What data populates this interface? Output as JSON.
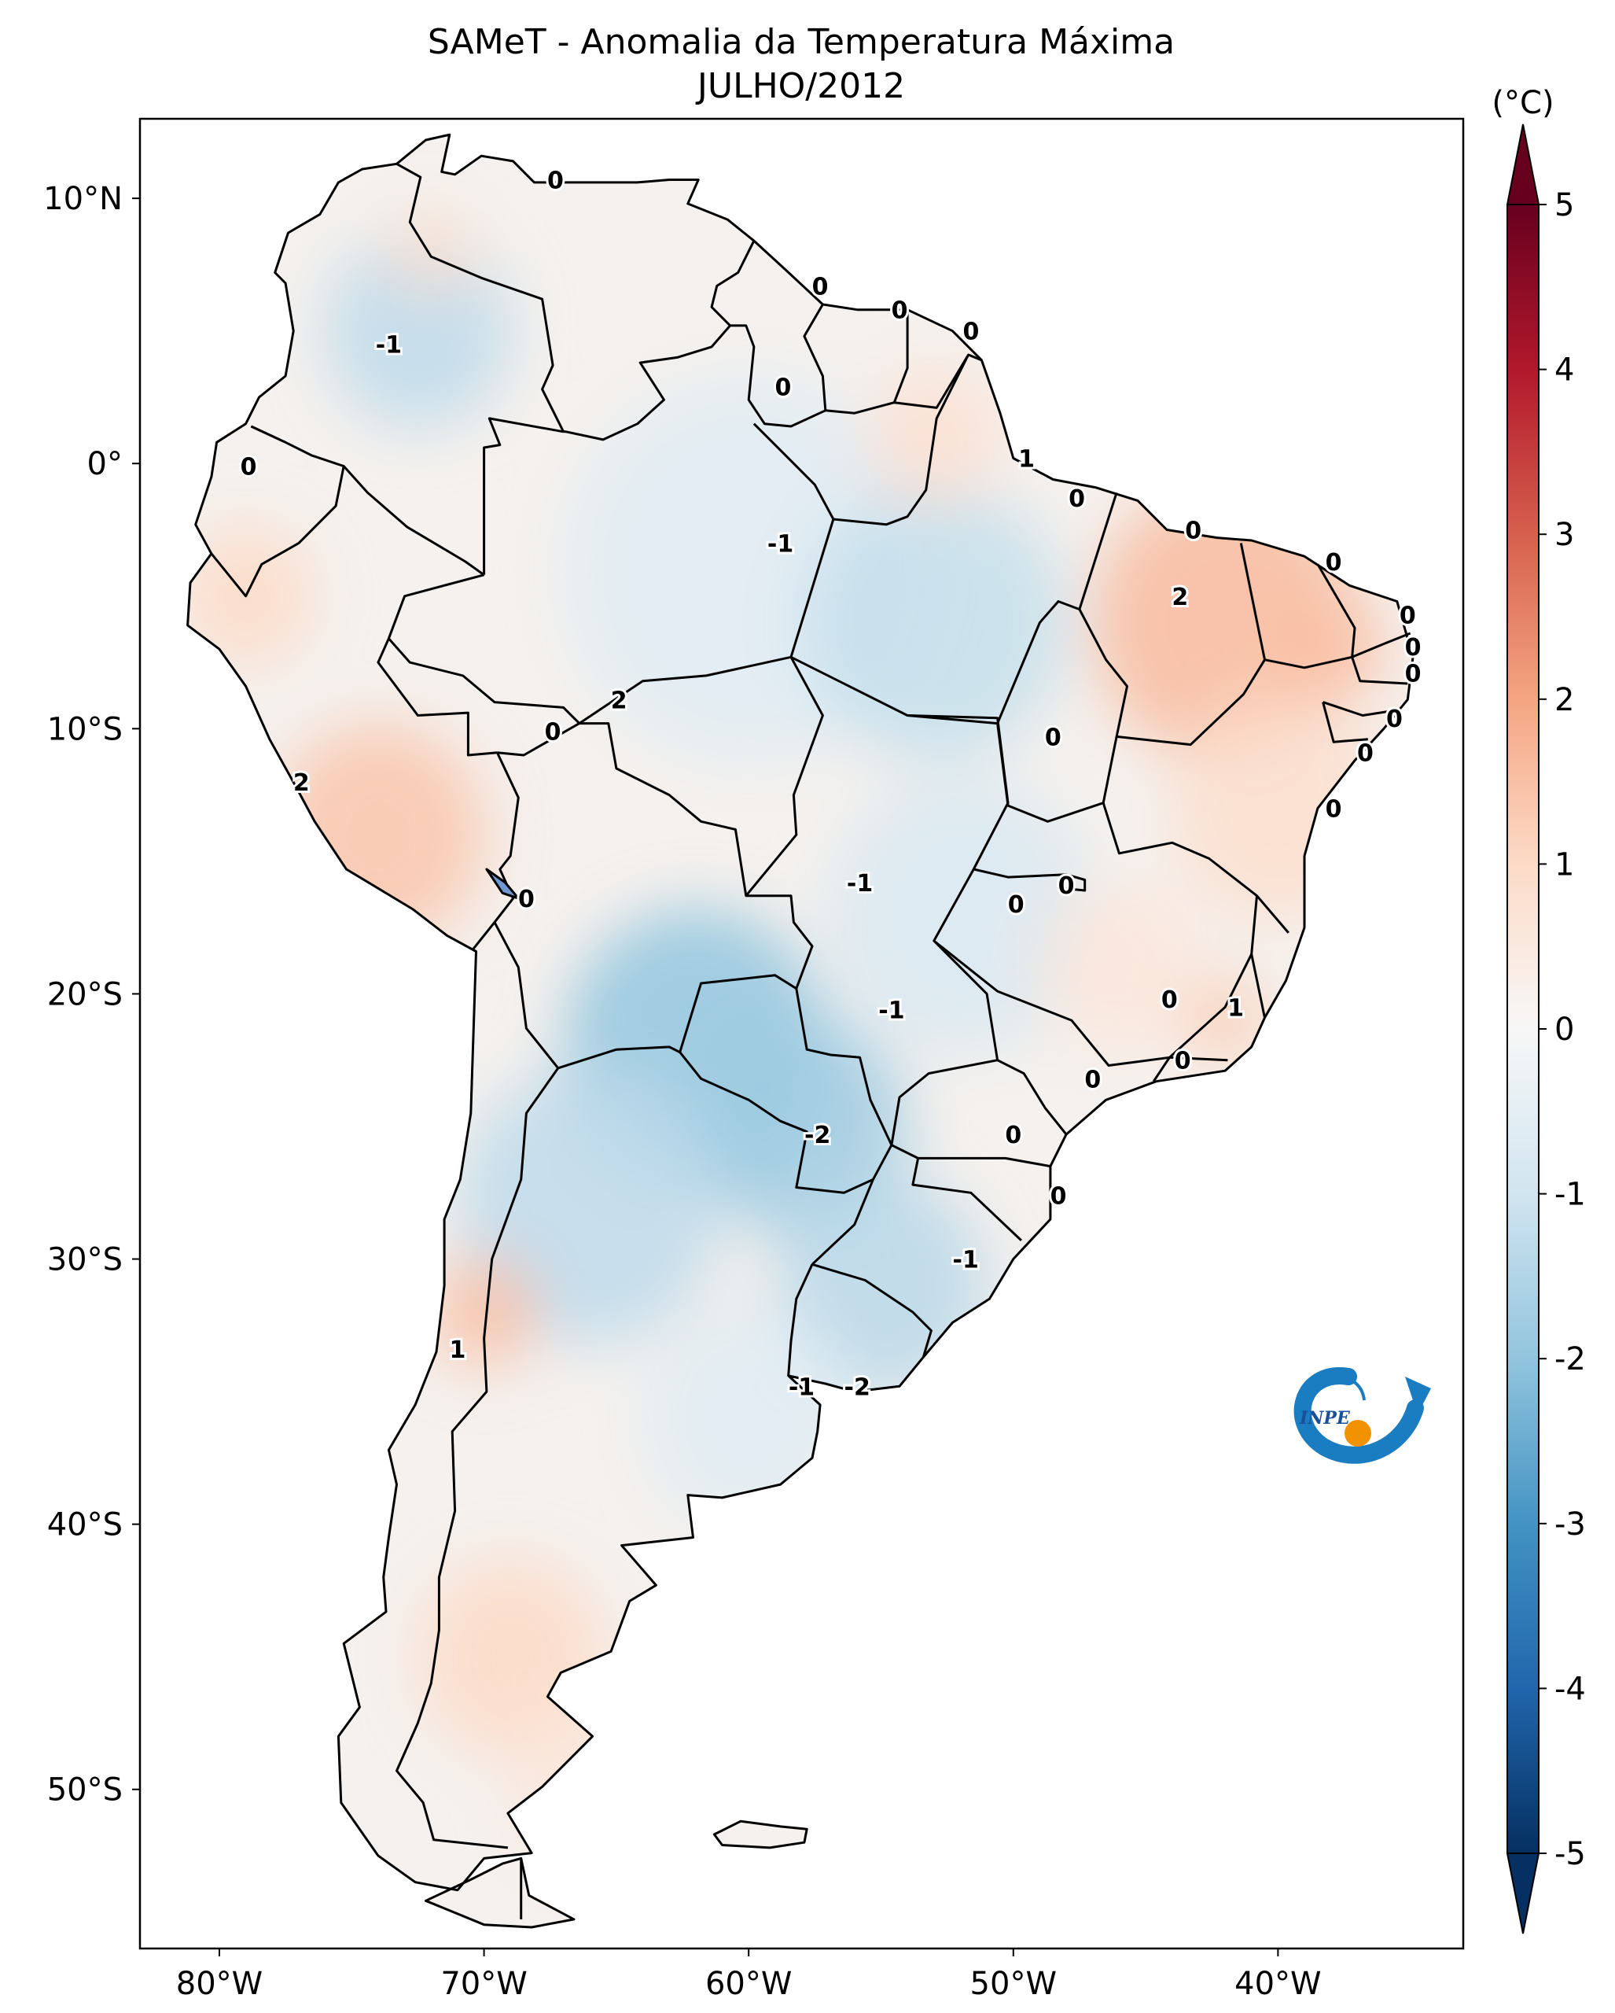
{
  "title": {
    "line1": "SAMeT - Anomalia da Temperatura Máxima",
    "line2": "JULHO/2012"
  },
  "map": {
    "extent": {
      "lon": [
        -83,
        -33
      ],
      "lat": [
        -56,
        13
      ]
    },
    "lon_ticks": [
      {
        "value": -80,
        "label": "80°W"
      },
      {
        "value": -70,
        "label": "70°W"
      },
      {
        "value": -60,
        "label": "60°W"
      },
      {
        "value": -50,
        "label": "50°W"
      },
      {
        "value": -40,
        "label": "40°W"
      }
    ],
    "lat_ticks": [
      {
        "value": 10,
        "label": "10°N"
      },
      {
        "value": 0,
        "label": "0°"
      },
      {
        "value": -10,
        "label": "10°S"
      },
      {
        "value": -20,
        "label": "20°S"
      },
      {
        "value": -30,
        "label": "30°S"
      },
      {
        "value": -40,
        "label": "40°S"
      },
      {
        "value": -50,
        "label": "50°S"
      }
    ],
    "anomaly_regions": [
      {
        "lon": -72.5,
        "lat": 5,
        "r": 3.5,
        "value": -1.3
      },
      {
        "lon": -60,
        "lat": -4,
        "r": 7,
        "value": -0.6
      },
      {
        "lon": -53,
        "lat": -6,
        "r": 5,
        "value": -1.2
      },
      {
        "lon": -62,
        "lat": -22,
        "r": 5,
        "value": -2.0
      },
      {
        "lon": -58,
        "lat": -25,
        "r": 4,
        "value": -1.8
      },
      {
        "lon": -66,
        "lat": -28,
        "r": 5,
        "value": -1.3
      },
      {
        "lon": -55,
        "lat": -31,
        "r": 4,
        "value": -1.4
      },
      {
        "lon": -52,
        "lat": -17,
        "r": 5,
        "value": -0.8
      },
      {
        "lon": -60,
        "lat": -36,
        "r": 4,
        "value": -0.6
      },
      {
        "lon": -42,
        "lat": -6,
        "r": 5,
        "value": 1.6
      },
      {
        "lon": -40,
        "lat": -13,
        "r": 4,
        "value": 0.9
      },
      {
        "lon": -74,
        "lat": -14,
        "r": 4,
        "value": 1.4
      },
      {
        "lon": -79,
        "lat": -5,
        "r": 2.5,
        "value": 1.0
      },
      {
        "lon": -70,
        "lat": -32,
        "r": 2,
        "value": 1.5
      },
      {
        "lon": -69,
        "lat": -45,
        "r": 3.5,
        "value": 1.0
      },
      {
        "lon": -53,
        "lat": 1,
        "r": 2.5,
        "value": 0.8
      },
      {
        "lon": -46,
        "lat": -19,
        "r": 3,
        "value": 0.6
      },
      {
        "lon": -42,
        "lat": -21,
        "r": 1.5,
        "value": 1.3
      },
      {
        "lon": -72,
        "lat": 8,
        "r": 1.5,
        "value": 0.9
      },
      {
        "lon": -66,
        "lat": -50,
        "r": 3,
        "value": 0.6
      },
      {
        "lon": -38,
        "lat": -7,
        "r": 2,
        "value": 1.5
      }
    ],
    "contour_labels": [
      {
        "text": "0",
        "lon": -67.3,
        "lat": 10.7
      },
      {
        "text": "0",
        "lon": -57.3,
        "lat": 6.7
      },
      {
        "text": "0",
        "lon": -54.3,
        "lat": 5.8
      },
      {
        "text": "0",
        "lon": -51.6,
        "lat": 5.0
      },
      {
        "text": "-1",
        "lon": -73.6,
        "lat": 4.5
      },
      {
        "text": "0",
        "lon": -58.7,
        "lat": 2.9
      },
      {
        "text": "0",
        "lon": -78.9,
        "lat": -0.1
      },
      {
        "text": "1",
        "lon": -49.5,
        "lat": 0.2
      },
      {
        "text": "0",
        "lon": -47.6,
        "lat": -1.3
      },
      {
        "text": "0",
        "lon": -43.2,
        "lat": -2.5
      },
      {
        "text": "-1",
        "lon": -58.8,
        "lat": -3.0
      },
      {
        "text": "0",
        "lon": -37.9,
        "lat": -3.7
      },
      {
        "text": "2",
        "lon": -43.7,
        "lat": -5.0
      },
      {
        "text": "0",
        "lon": -35.1,
        "lat": -5.7
      },
      {
        "text": "0",
        "lon": -34.9,
        "lat": -6.9
      },
      {
        "text": "0",
        "lon": -34.9,
        "lat": -7.9
      },
      {
        "text": "2",
        "lon": -64.9,
        "lat": -8.9
      },
      {
        "text": "0",
        "lon": -35.6,
        "lat": -9.6
      },
      {
        "text": "0",
        "lon": -67.4,
        "lat": -10.1
      },
      {
        "text": "0",
        "lon": -48.5,
        "lat": -10.3
      },
      {
        "text": "0",
        "lon": -36.7,
        "lat": -10.9
      },
      {
        "text": "2",
        "lon": -76.9,
        "lat": -12.0
      },
      {
        "text": "0",
        "lon": -37.9,
        "lat": -13.0
      },
      {
        "text": "-1",
        "lon": -55.8,
        "lat": -15.8
      },
      {
        "text": "0",
        "lon": -48.0,
        "lat": -15.9
      },
      {
        "text": "0",
        "lon": -49.9,
        "lat": -16.6
      },
      {
        "text": "0",
        "lon": -68.4,
        "lat": -16.4
      },
      {
        "text": "0",
        "lon": -44.1,
        "lat": -20.2
      },
      {
        "text": "-1",
        "lon": -54.6,
        "lat": -20.6
      },
      {
        "text": "1",
        "lon": -41.6,
        "lat": -20.5
      },
      {
        "text": "0",
        "lon": -43.6,
        "lat": -22.5
      },
      {
        "text": "0",
        "lon": -47.0,
        "lat": -23.2
      },
      {
        "text": "-2",
        "lon": -57.4,
        "lat": -25.3
      },
      {
        "text": "0",
        "lon": -50.0,
        "lat": -25.3
      },
      {
        "text": "0",
        "lon": -48.3,
        "lat": -27.6
      },
      {
        "text": "-1",
        "lon": -51.8,
        "lat": -30.0
      },
      {
        "text": "-1",
        "lon": -58.0,
        "lat": -34.8
      },
      {
        "text": "-2",
        "lon": -55.9,
        "lat": -34.8
      },
      {
        "text": "1",
        "lon": -71.0,
        "lat": -33.4
      }
    ]
  },
  "colorbar": {
    "unit_label": "(°C)",
    "min": -5,
    "max": 5,
    "ticks": [
      {
        "value": 5,
        "label": "5"
      },
      {
        "value": 4,
        "label": "4"
      },
      {
        "value": 3,
        "label": "3"
      },
      {
        "value": 2,
        "label": "2"
      },
      {
        "value": 1,
        "label": "1"
      },
      {
        "value": 0,
        "label": "0"
      },
      {
        "value": -1,
        "label": "-1"
      },
      {
        "value": -2,
        "label": "-2"
      },
      {
        "value": -3,
        "label": "-3"
      },
      {
        "value": -4,
        "label": "-4"
      },
      {
        "value": -5,
        "label": "-5"
      }
    ],
    "colors": [
      "#053061",
      "#2166ac",
      "#4393c3",
      "#92c5de",
      "#d1e5f0",
      "#f7f7f7",
      "#fddbc7",
      "#f4a582",
      "#d6604d",
      "#b2182b",
      "#67001f"
    ]
  },
  "logo": {
    "text": "INPE",
    "colors": {
      "blue": "#1a7cc1",
      "orange": "#f39200"
    }
  }
}
